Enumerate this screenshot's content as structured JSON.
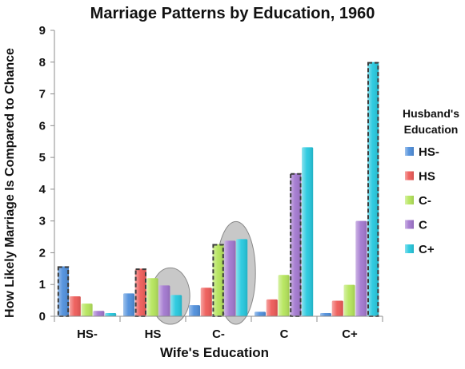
{
  "chart_data": {
    "type": "bar",
    "title": "Marriage Patterns by Education, 1960",
    "xlabel": "Wife's Education",
    "ylabel": "How Likely Marriage Is Compared to Chance",
    "categories": [
      "HS-",
      "HS",
      "C-",
      "C",
      "C+"
    ],
    "ylim": [
      0,
      9
    ],
    "yticks": [
      "0",
      "1",
      "2",
      "3",
      "4",
      "5",
      "6",
      "7",
      "8",
      "9"
    ],
    "grid": false,
    "legend": {
      "title_line1": "Husband's",
      "title_line2": "Education",
      "placement": "right"
    },
    "series": [
      {
        "name": "HS-",
        "color": "#4f8fdc",
        "values": [
          1.57,
          0.72,
          0.35,
          0.14,
          0.1
        ]
      },
      {
        "name": "HS",
        "color": "#ee5b58",
        "values": [
          0.63,
          1.5,
          0.9,
          0.53,
          0.49
        ]
      },
      {
        "name": "C-",
        "color": "#b5e55b",
        "values": [
          0.4,
          1.2,
          2.27,
          1.3,
          0.99
        ]
      },
      {
        "name": "C",
        "color": "#a277cf",
        "values": [
          0.17,
          0.97,
          2.38,
          4.5,
          3.0
        ]
      },
      {
        "name": "C+",
        "color": "#25c8de",
        "values": [
          0.1,
          0.67,
          2.43,
          5.32,
          8.0
        ]
      }
    ],
    "dashed_outline_bars": [
      {
        "series": "HS-",
        "category": "HS-"
      },
      {
        "series": "HS",
        "category": "HS"
      },
      {
        "series": "C-",
        "category": "C-"
      },
      {
        "series": "C",
        "category": "C"
      },
      {
        "series": "C+",
        "category": "C+"
      }
    ],
    "highlight_ellipses": [
      {
        "category": "HS",
        "series_from": "C",
        "series_to": "C+"
      },
      {
        "category": "C-",
        "series_from": "C",
        "series_to": "C+"
      }
    ]
  }
}
